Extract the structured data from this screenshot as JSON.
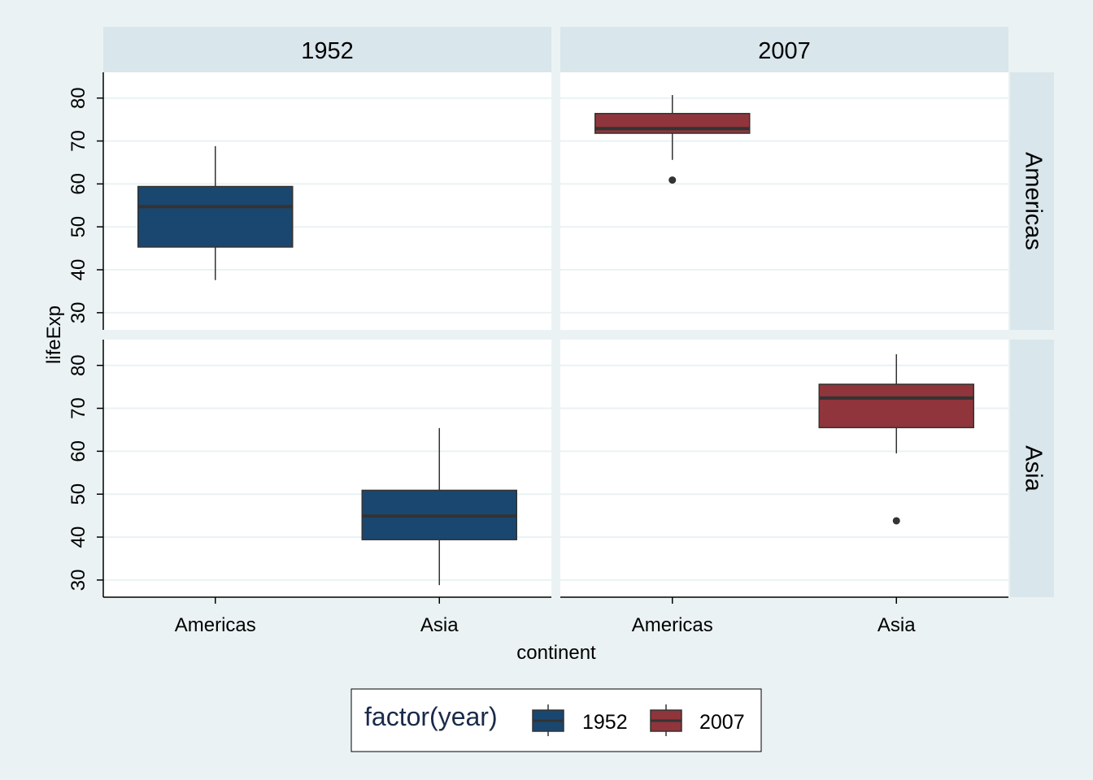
{
  "chart_data": {
    "type": "box",
    "facet_columns": [
      "1952",
      "2007"
    ],
    "facet_rows": [
      "Americas",
      "Asia"
    ],
    "categories": [
      "Americas",
      "Asia"
    ],
    "xlabel": "continent",
    "ylabel": "lifeExp",
    "ylim": [
      26,
      86
    ],
    "yticks": [
      30,
      40,
      50,
      60,
      70,
      80
    ],
    "legend": {
      "title": "factor(year)",
      "position": "bottom",
      "entries": [
        {
          "label": "1952",
          "color": "#1a476f"
        },
        {
          "label": "2007",
          "color": "#90353b"
        }
      ]
    },
    "boxes": [
      {
        "year": "1952",
        "facet_row": "Americas",
        "category": "Americas",
        "min": 37.6,
        "q1": 45.3,
        "median": 54.7,
        "q3": 59.4,
        "max": 68.8,
        "outliers": []
      },
      {
        "year": "1952",
        "facet_row": "Asia",
        "category": "Asia",
        "min": 28.8,
        "q1": 39.4,
        "median": 44.9,
        "q3": 50.9,
        "max": 65.4,
        "outliers": []
      },
      {
        "year": "2007",
        "facet_row": "Americas",
        "category": "Americas",
        "min": 65.6,
        "q1": 71.8,
        "median": 72.9,
        "q3": 76.4,
        "max": 80.7,
        "outliers": [
          60.9
        ]
      },
      {
        "year": "2007",
        "facet_row": "Asia",
        "category": "Asia",
        "min": 59.5,
        "q1": 65.5,
        "median": 72.4,
        "q3": 75.6,
        "max": 82.6,
        "outliers": [
          43.8
        ]
      }
    ],
    "grid": true
  }
}
